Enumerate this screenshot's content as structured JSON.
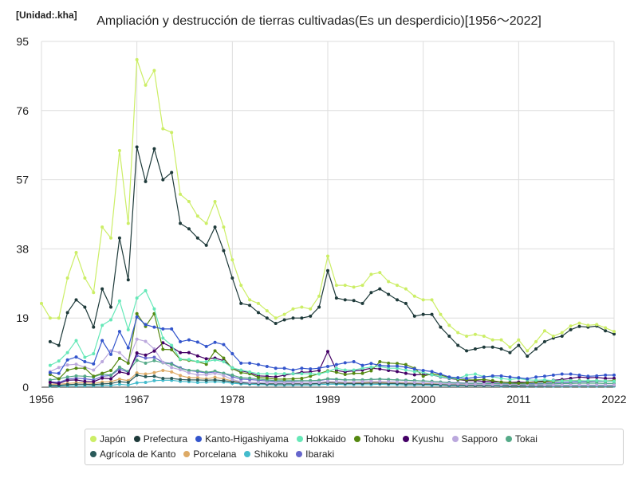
{
  "chart_data": {
    "type": "line",
    "title": "Ampliación y destrucción de tierras cultivadas(Es un desperdicio)[1956～2022]",
    "unit_label": "[Unidad:.kha]",
    "xlim": [
      1956,
      2022
    ],
    "ylim": [
      0,
      95
    ],
    "x_ticks": [
      1956,
      1967,
      1978,
      1989,
      2000,
      2011,
      2022
    ],
    "y_ticks": [
      0,
      19,
      38,
      57,
      76,
      95
    ],
    "grid": true,
    "legend_position": "bottom",
    "x": [
      1956,
      1957,
      1958,
      1959,
      1960,
      1961,
      1962,
      1963,
      1964,
      1965,
      1966,
      1967,
      1968,
      1969,
      1970,
      1971,
      1972,
      1973,
      1974,
      1975,
      1976,
      1977,
      1978,
      1979,
      1980,
      1981,
      1982,
      1983,
      1984,
      1985,
      1986,
      1987,
      1988,
      1989,
      1990,
      1991,
      1992,
      1993,
      1994,
      1995,
      1996,
      1997,
      1998,
      1999,
      2000,
      2001,
      2002,
      2003,
      2004,
      2005,
      2006,
      2007,
      2008,
      2009,
      2010,
      2011,
      2012,
      2013,
      2014,
      2015,
      2016,
      2017,
      2018,
      2019,
      2020,
      2021,
      2022
    ],
    "series": [
      {
        "name": "Japón",
        "color": "#ccee66",
        "values": [
          23,
          19,
          19,
          30,
          37,
          30,
          26,
          44,
          41,
          65,
          45,
          90,
          83,
          87,
          71,
          70,
          53,
          51,
          47,
          45,
          51,
          44,
          35,
          28,
          24,
          23,
          21,
          19,
          20,
          21.5,
          22,
          21.5,
          25,
          36,
          28,
          28,
          27.5,
          28,
          31,
          31.5,
          29,
          28,
          27,
          25,
          24,
          24,
          20,
          17,
          15,
          14,
          14.5,
          14,
          13,
          13,
          11,
          13,
          10,
          12.5,
          15.5,
          14,
          15,
          16.8,
          17.6,
          17,
          17.2,
          16.3,
          15.3
        ]
      },
      {
        "name": "Prefectura",
        "color": "#1e3a3a",
        "values": [
          null,
          12.5,
          11.5,
          20.5,
          24,
          22,
          16.5,
          27,
          22,
          41,
          29.5,
          66,
          56.5,
          65.5,
          57,
          59,
          45,
          43.5,
          41,
          39,
          44,
          37.5,
          30,
          23,
          22.5,
          20.5,
          19,
          17.5,
          18.5,
          19,
          19,
          19.5,
          22,
          32,
          24.5,
          24,
          23.8,
          23,
          26,
          27,
          25.5,
          24,
          23,
          19.5,
          20,
          20,
          16.5,
          14,
          11.5,
          10,
          10.5,
          11,
          11,
          10.5,
          9.5,
          11.5,
          8.5,
          10.5,
          12.5,
          13.5,
          14,
          15.8,
          16.7,
          16.5,
          16.8,
          15.5,
          14.6
        ]
      },
      {
        "name": "Kanto-Higashiyama",
        "color": "#3355cc",
        "values": [
          null,
          4,
          3.8,
          7.5,
          8.3,
          7,
          6.4,
          12.8,
          9,
          15.3,
          10.8,
          19.3,
          17.2,
          16.5,
          16,
          16,
          12.5,
          13,
          12.4,
          11.2,
          12.3,
          11.7,
          9.2,
          6.6,
          6.6,
          6.2,
          5.7,
          5.2,
          5.2,
          4.7,
          5.2,
          5,
          5.2,
          5.7,
          6.2,
          6.7,
          7,
          6,
          6.5,
          6,
          5.8,
          5.8,
          5.5,
          5,
          4.6,
          4.3,
          3.6,
          2.8,
          2.6,
          2.4,
          2.7,
          2.8,
          3.1,
          3.1,
          2.8,
          2.6,
          2.3,
          2.8,
          3,
          3.3,
          3.6,
          3.6,
          3.3,
          3,
          3.1,
          3.3,
          3.3
        ]
      },
      {
        "name": "Hokkaido",
        "color": "#66e8b8",
        "values": [
          null,
          6,
          7.2,
          9.5,
          12.8,
          8.2,
          9.2,
          17,
          18.5,
          23.7,
          15.8,
          24.5,
          26.5,
          21.5,
          13.5,
          11.5,
          7.7,
          7.6,
          7,
          7,
          7.5,
          7,
          5.3,
          4.7,
          4.2,
          3.7,
          3.7,
          3.7,
          3.7,
          3.7,
          3.7,
          3.7,
          3.6,
          4.3,
          5.2,
          4.7,
          4.7,
          5.2,
          5.5,
          5.7,
          5.2,
          5.2,
          4.7,
          4.3,
          4.1,
          3.4,
          2.9,
          2.5,
          2.4,
          3.3,
          3.6,
          2.9,
          2.9,
          2.4,
          2.1,
          2.4,
          2,
          1.9,
          2,
          1.8,
          1.7,
          1.8,
          1.7,
          1.8,
          1.8,
          1.7,
          1.6
        ]
      },
      {
        "name": "Tohoku",
        "color": "#558811",
        "values": [
          null,
          3.5,
          2.3,
          4.7,
          5.2,
          5.2,
          3,
          3.8,
          4.6,
          7.9,
          6.6,
          20.2,
          16.7,
          20.2,
          10.4,
          10.3,
          7.6,
          7.4,
          7,
          6.3,
          10,
          8,
          5.1,
          4,
          3.7,
          2.7,
          2.5,
          2.2,
          2.2,
          2.3,
          2.4,
          3,
          3.7,
          4.5,
          4.1,
          3.5,
          3.8,
          3.8,
          4.5,
          7,
          6.6,
          6.5,
          6.2,
          5.2,
          3,
          3.7,
          3.3,
          2.7,
          2.1,
          2,
          2,
          2.1,
          1.8,
          1.4,
          1.2,
          1.1,
          1.2,
          1.4,
          1.5,
          1.6,
          1.8,
          1.8,
          1.8,
          1.7,
          1.8,
          1.7,
          1.8
        ]
      },
      {
        "name": "Kyushu",
        "color": "#440066",
        "values": [
          null,
          1.3,
          1,
          1.9,
          2,
          1.6,
          1.5,
          2.5,
          2.3,
          4.2,
          3.7,
          9.4,
          8.8,
          9.9,
          12.2,
          11,
          9.5,
          9.5,
          8.6,
          7.8,
          8,
          7.3,
          5.3,
          4.5,
          4,
          3.1,
          3,
          2.8,
          3.3,
          3.7,
          4.1,
          4.2,
          4.6,
          9.8,
          4.6,
          4.2,
          4.5,
          4.7,
          5.2,
          5,
          4.6,
          4.3,
          3.8,
          3.4,
          3.5,
          3.4,
          2.8,
          2.4,
          2.1,
          1.8,
          1.8,
          1.6,
          1.5,
          1.4,
          1.3,
          1.4,
          1.3,
          1.5,
          1.7,
          1.9,
          2.1,
          2.4,
          2.8,
          2.6,
          2.7,
          2.4,
          2.4
        ]
      },
      {
        "name": "Sapporo",
        "color": "#bba8dd",
        "values": [
          null,
          4.3,
          5.4,
          6.1,
          6.3,
          5.5,
          4.7,
          7,
          10,
          9.5,
          7.2,
          13.2,
          12.6,
          10.5,
          6.8,
          5.4,
          4.8,
          3.9,
          3.4,
          3.4,
          3.8,
          3.2,
          2.1,
          1.5,
          1.3,
          1.3,
          1.2,
          1.2,
          1.2,
          1.2,
          1.2,
          1.2,
          1.3,
          1.6,
          1.5,
          1.4,
          1.4,
          1.5,
          1.6,
          1.6,
          1.5,
          1.4,
          1.4,
          1.3,
          1.2,
          1.2,
          1,
          0.9,
          0.9,
          0.8,
          0.8,
          0.8,
          0.7,
          0.7,
          0.7,
          0.7,
          0.6,
          0.6,
          0.6,
          0.6,
          0.6,
          0.6,
          0.6,
          0.6,
          0.6,
          0.6,
          0.6
        ]
      },
      {
        "name": "Tokai",
        "color": "#55aa88",
        "values": [
          null,
          2,
          2.3,
          2.8,
          3.1,
          3,
          2.8,
          3.6,
          3.3,
          5.5,
          4.3,
          7.4,
          6.6,
          7.3,
          6.7,
          6.3,
          5.1,
          4.6,
          4.5,
          4.1,
          4.4,
          3.8,
          3.3,
          2.6,
          2.5,
          2.2,
          2,
          1.8,
          1.8,
          1.8,
          1.8,
          1.8,
          1.9,
          2.3,
          2.2,
          2,
          2,
          2,
          2.1,
          2.2,
          2.1,
          2,
          1.9,
          1.8,
          1.7,
          1.6,
          1.4,
          1.2,
          1.1,
          1,
          1,
          1,
          1,
          0.9,
          0.9,
          0.9,
          0.8,
          0.8,
          0.9,
          0.9,
          1,
          1,
          1.1,
          1.1,
          1.1,
          1,
          1
        ]
      },
      {
        "name": "Agrícola de Kanto",
        "color": "#2a5a5a",
        "values": [
          null,
          0.5,
          0.5,
          0.7,
          0.8,
          0.8,
          0.7,
          0.9,
          1,
          1.5,
          1.3,
          3.3,
          2.9,
          3,
          2.4,
          2.4,
          2.1,
          2,
          2,
          1.9,
          2,
          1.8,
          1.5,
          1.2,
          1.1,
          1,
          0.9,
          0.9,
          0.9,
          0.9,
          0.9,
          0.9,
          1,
          1.2,
          1.1,
          1,
          1,
          1,
          1.1,
          1.1,
          1,
          1,
          0.9,
          0.9,
          0.8,
          0.8,
          0.7,
          0.6,
          0.6,
          0.5,
          0.5,
          0.5,
          0.5,
          0.5,
          0.4,
          0.4,
          0.4,
          0.4,
          0.4,
          0.5,
          0.5,
          0.5,
          0.5,
          0.5,
          0.5,
          0.5,
          0.5
        ]
      },
      {
        "name": "Porcelana",
        "color": "#ddaa66",
        "values": [
          null,
          0.8,
          0.8,
          1,
          1.2,
          1.2,
          1,
          1.4,
          1.5,
          2.2,
          1.8,
          3.9,
          3.6,
          4,
          4.6,
          4.2,
          3.2,
          2.6,
          2.6,
          2.3,
          2.7,
          2.3,
          1.7,
          1.3,
          1.2,
          1.1,
          1,
          0.9,
          0.9,
          1,
          1,
          1,
          1.1,
          1.4,
          1.3,
          1.2,
          1.2,
          1.2,
          1.3,
          1.3,
          1.2,
          1.2,
          1.1,
          1,
          1,
          0.9,
          0.8,
          0.7,
          0.7,
          0.6,
          0.6,
          0.6,
          0.6,
          0.5,
          0.5,
          0.5,
          0.5,
          0.5,
          0.5,
          0.5,
          0.5,
          0.5,
          0.5,
          0.5,
          0.5,
          0.5,
          0.5
        ]
      },
      {
        "name": "Shikoku",
        "color": "#44bbcc",
        "values": [
          null,
          0.3,
          0.3,
          0.4,
          0.4,
          0.4,
          0.4,
          0.5,
          0.5,
          0.8,
          0.6,
          1.2,
          1.3,
          1.8,
          1.9,
          1.9,
          1.6,
          1.5,
          1.3,
          1.4,
          1.5,
          1.4,
          1.1,
          0.9,
          0.8,
          0.7,
          0.7,
          0.6,
          0.6,
          0.6,
          0.6,
          0.6,
          0.7,
          0.8,
          0.8,
          0.7,
          0.7,
          0.7,
          0.7,
          0.8,
          0.7,
          0.7,
          0.6,
          0.6,
          0.6,
          0.5,
          0.5,
          0.4,
          0.4,
          0.4,
          0.4,
          0.4,
          0.4,
          0.3,
          0.3,
          0.3,
          0.3,
          0.3,
          0.3,
          0.3,
          0.3,
          0.3,
          0.3,
          0.3,
          0.3,
          0.3,
          0.3
        ]
      },
      {
        "name": "Ibaraki",
        "color": "#6666cc",
        "values": [
          null,
          1.5,
          1.3,
          2.2,
          2.5,
          2.3,
          2,
          3,
          3.2,
          5,
          4.1,
          8.7,
          8,
          8.2,
          6.8,
          6.5,
          5.3,
          4.6,
          4.3,
          3.9,
          4.2,
          3.8,
          2.9,
          2.2,
          2.1,
          1.9,
          1.7,
          1.6,
          1.6,
          1.6,
          1.7,
          1.7,
          1.8,
          2.2,
          2.1,
          2,
          2,
          2,
          2.1,
          2.2,
          2.1,
          2,
          1.9,
          1.8,
          1.7,
          1.6,
          1.4,
          1.3,
          1.2,
          1.1,
          1.1,
          1.1,
          1.1,
          1,
          1,
          1,
          0.9,
          1,
          1.1,
          1.2,
          1.3,
          1.4,
          1.5,
          1.5,
          1.6,
          1.6,
          1.6
        ]
      }
    ]
  }
}
